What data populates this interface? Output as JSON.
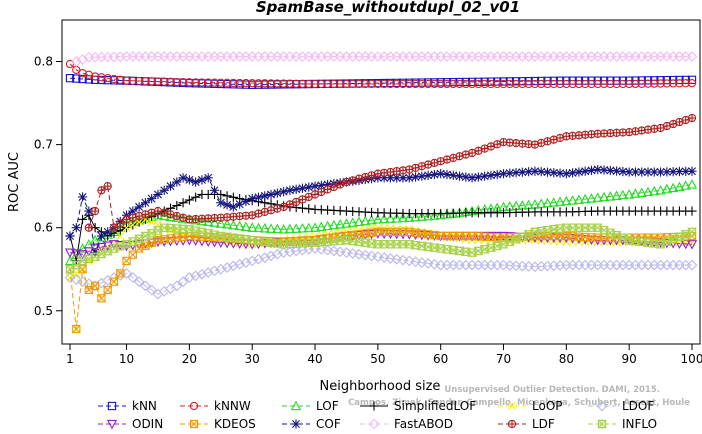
{
  "chart_data": {
    "type": "line",
    "title": "SpamBase_withoutdupl_02_v01",
    "xlabel": "Neighborhood size",
    "ylabel": "ROC AUC",
    "xlim": [
      1,
      100
    ],
    "ylim": [
      0.46,
      0.85
    ],
    "xticks": [
      1,
      10,
      20,
      30,
      40,
      50,
      60,
      70,
      80,
      90,
      100
    ],
    "yticks": [
      0.5,
      0.6,
      0.7,
      0.8
    ],
    "legend_position": "bottom",
    "watermark": [
      "Unsupervised Outlier Detection. DAMI, 2015.",
      "Campos, Zimek, Sander, Campello, Micenkova, Schubert, Assent, Houle"
    ],
    "series": [
      {
        "name": "kNN",
        "color": "#1515d0",
        "marker": "square",
        "dash": "5,3",
        "points": [
          [
            1,
            0.78
          ],
          [
            5,
            0.778
          ],
          [
            10,
            0.777
          ],
          [
            20,
            0.774
          ],
          [
            30,
            0.772
          ],
          [
            40,
            0.773
          ],
          [
            50,
            0.774
          ],
          [
            60,
            0.775
          ],
          [
            70,
            0.776
          ],
          [
            80,
            0.777
          ],
          [
            90,
            0.777
          ],
          [
            100,
            0.778
          ]
        ]
      },
      {
        "name": "kNNW",
        "color": "#d82020",
        "marker": "circle",
        "dash": "5,3",
        "points": [
          [
            1,
            0.797
          ],
          [
            2,
            0.79
          ],
          [
            3,
            0.786
          ],
          [
            5,
            0.782
          ],
          [
            10,
            0.777
          ],
          [
            20,
            0.775
          ],
          [
            30,
            0.774
          ],
          [
            40,
            0.773
          ],
          [
            50,
            0.773
          ],
          [
            60,
            0.773
          ],
          [
            70,
            0.773
          ],
          [
            80,
            0.773
          ],
          [
            90,
            0.773
          ],
          [
            100,
            0.774
          ]
        ]
      },
      {
        "name": "LOF",
        "color": "#22dd22",
        "marker": "triangle",
        "dash": "5,3",
        "points": [
          [
            1,
            0.56
          ],
          [
            3,
            0.575
          ],
          [
            5,
            0.585
          ],
          [
            8,
            0.595
          ],
          [
            10,
            0.605
          ],
          [
            15,
            0.615
          ],
          [
            20,
            0.61
          ],
          [
            25,
            0.605
          ],
          [
            30,
            0.6
          ],
          [
            35,
            0.598
          ],
          [
            40,
            0.6
          ],
          [
            45,
            0.605
          ],
          [
            50,
            0.61
          ],
          [
            55,
            0.612
          ],
          [
            60,
            0.615
          ],
          [
            65,
            0.62
          ],
          [
            70,
            0.625
          ],
          [
            75,
            0.628
          ],
          [
            80,
            0.632
          ],
          [
            85,
            0.636
          ],
          [
            90,
            0.64
          ],
          [
            95,
            0.645
          ],
          [
            100,
            0.652
          ]
        ]
      },
      {
        "name": "SimplifiedLOF",
        "color": "#000000",
        "marker": "plus",
        "dash": "",
        "points": [
          [
            1,
            0.59
          ],
          [
            2,
            0.56
          ],
          [
            3,
            0.61
          ],
          [
            4,
            0.615
          ],
          [
            5,
            0.6
          ],
          [
            7,
            0.59
          ],
          [
            10,
            0.6
          ],
          [
            13,
            0.61
          ],
          [
            16,
            0.62
          ],
          [
            19,
            0.63
          ],
          [
            22,
            0.64
          ],
          [
            25,
            0.64
          ],
          [
            28,
            0.635
          ],
          [
            32,
            0.63
          ],
          [
            36,
            0.625
          ],
          [
            40,
            0.622
          ],
          [
            45,
            0.62
          ],
          [
            50,
            0.618
          ],
          [
            55,
            0.617
          ],
          [
            60,
            0.617
          ],
          [
            65,
            0.618
          ],
          [
            70,
            0.618
          ],
          [
            75,
            0.619
          ],
          [
            80,
            0.619
          ],
          [
            85,
            0.62
          ],
          [
            90,
            0.62
          ],
          [
            95,
            0.62
          ],
          [
            100,
            0.62
          ]
        ]
      },
      {
        "name": "LoOP",
        "color": "#f2f200",
        "marker": "cross",
        "dash": "5,3",
        "points": [
          [
            1,
            0.54
          ],
          [
            3,
            0.55
          ],
          [
            5,
            0.57
          ],
          [
            8,
            0.58
          ],
          [
            10,
            0.6
          ],
          [
            13,
            0.61
          ],
          [
            16,
            0.6
          ],
          [
            20,
            0.59
          ],
          [
            25,
            0.585
          ],
          [
            30,
            0.58
          ],
          [
            35,
            0.585
          ],
          [
            40,
            0.59
          ],
          [
            45,
            0.595
          ],
          [
            50,
            0.6
          ],
          [
            55,
            0.598
          ],
          [
            60,
            0.59
          ],
          [
            65,
            0.585
          ],
          [
            70,
            0.585
          ],
          [
            75,
            0.585
          ],
          [
            80,
            0.583
          ],
          [
            85,
            0.583
          ],
          [
            90,
            0.582
          ],
          [
            95,
            0.582
          ],
          [
            100,
            0.582
          ]
        ]
      },
      {
        "name": "LDOF",
        "color": "#b8b8ee",
        "marker": "diamond",
        "dash": "5,3",
        "points": [
          [
            1,
            0.54
          ],
          [
            3,
            0.535
          ],
          [
            5,
            0.53
          ],
          [
            8,
            0.54
          ],
          [
            10,
            0.545
          ],
          [
            12,
            0.535
          ],
          [
            15,
            0.52
          ],
          [
            18,
            0.53
          ],
          [
            20,
            0.54
          ],
          [
            25,
            0.55
          ],
          [
            30,
            0.56
          ],
          [
            35,
            0.57
          ],
          [
            40,
            0.575
          ],
          [
            45,
            0.57
          ],
          [
            50,
            0.565
          ],
          [
            55,
            0.56
          ],
          [
            60,
            0.555
          ],
          [
            65,
            0.555
          ],
          [
            70,
            0.555
          ],
          [
            75,
            0.553
          ],
          [
            80,
            0.555
          ],
          [
            85,
            0.555
          ],
          [
            90,
            0.555
          ],
          [
            95,
            0.555
          ],
          [
            100,
            0.555
          ]
        ]
      },
      {
        "name": "ODIN",
        "color": "#9b1bd0",
        "marker": "triangle-down",
        "dash": "5,3",
        "points": [
          [
            1,
            0.57
          ],
          [
            3,
            0.568
          ],
          [
            5,
            0.575
          ],
          [
            8,
            0.58
          ],
          [
            10,
            0.578
          ],
          [
            15,
            0.583
          ],
          [
            20,
            0.585
          ],
          [
            25,
            0.582
          ],
          [
            30,
            0.58
          ],
          [
            35,
            0.583
          ],
          [
            40,
            0.585
          ],
          [
            45,
            0.59
          ],
          [
            50,
            0.593
          ],
          [
            55,
            0.592
          ],
          [
            60,
            0.59
          ],
          [
            65,
            0.59
          ],
          [
            70,
            0.59
          ],
          [
            75,
            0.588
          ],
          [
            80,
            0.588
          ],
          [
            85,
            0.585
          ],
          [
            90,
            0.585
          ],
          [
            95,
            0.582
          ],
          [
            100,
            0.58
          ]
        ]
      },
      {
        "name": "KDEOS",
        "color": "#f09a00",
        "marker": "square-x",
        "dash": "5,3",
        "points": [
          [
            1,
            0.55
          ],
          [
            2,
            0.478
          ],
          [
            3,
            0.55
          ],
          [
            4,
            0.525
          ],
          [
            5,
            0.53
          ],
          [
            6,
            0.515
          ],
          [
            7,
            0.525
          ],
          [
            8,
            0.535
          ],
          [
            9,
            0.545
          ],
          [
            10,
            0.56
          ],
          [
            12,
            0.575
          ],
          [
            15,
            0.585
          ],
          [
            20,
            0.59
          ],
          [
            25,
            0.588
          ],
          [
            30,
            0.585
          ],
          [
            35,
            0.583
          ],
          [
            40,
            0.585
          ],
          [
            45,
            0.59
          ],
          [
            50,
            0.595
          ],
          [
            55,
            0.595
          ],
          [
            60,
            0.59
          ],
          [
            65,
            0.59
          ],
          [
            70,
            0.588
          ],
          [
            75,
            0.59
          ],
          [
            80,
            0.59
          ],
          [
            85,
            0.588
          ],
          [
            90,
            0.588
          ],
          [
            95,
            0.588
          ],
          [
            100,
            0.59
          ]
        ]
      },
      {
        "name": "COF",
        "color": "#15157f",
        "marker": "asterisk",
        "dash": "5,3",
        "points": [
          [
            1,
            0.59
          ],
          [
            2,
            0.6
          ],
          [
            3,
            0.637
          ],
          [
            4,
            0.62
          ],
          [
            5,
            0.57
          ],
          [
            6,
            0.59
          ],
          [
            8,
            0.6
          ],
          [
            10,
            0.615
          ],
          [
            13,
            0.63
          ],
          [
            16,
            0.645
          ],
          [
            19,
            0.66
          ],
          [
            21,
            0.655
          ],
          [
            23,
            0.66
          ],
          [
            25,
            0.63
          ],
          [
            27,
            0.625
          ],
          [
            30,
            0.635
          ],
          [
            33,
            0.64
          ],
          [
            36,
            0.645
          ],
          [
            40,
            0.65
          ],
          [
            45,
            0.655
          ],
          [
            50,
            0.66
          ],
          [
            55,
            0.66
          ],
          [
            60,
            0.665
          ],
          [
            65,
            0.66
          ],
          [
            70,
            0.665
          ],
          [
            75,
            0.668
          ],
          [
            80,
            0.665
          ],
          [
            85,
            0.67
          ],
          [
            90,
            0.667
          ],
          [
            95,
            0.667
          ],
          [
            100,
            0.668
          ]
        ]
      },
      {
        "name": "FastABOD",
        "color": "#f5b8f5",
        "marker": "diamond",
        "dash": "5,3",
        "points": [
          [
            2,
            0.8
          ],
          [
            4,
            0.805
          ],
          [
            10,
            0.806
          ],
          [
            20,
            0.806
          ],
          [
            30,
            0.806
          ],
          [
            40,
            0.806
          ],
          [
            50,
            0.806
          ],
          [
            60,
            0.806
          ],
          [
            70,
            0.806
          ],
          [
            80,
            0.806
          ],
          [
            90,
            0.806
          ],
          [
            100,
            0.806
          ]
        ]
      },
      {
        "name": "LDF",
        "color": "#b02020",
        "marker": "circle-plus",
        "dash": "5,3",
        "points": [
          [
            4,
            0.6
          ],
          [
            5,
            0.62
          ],
          [
            6,
            0.645
          ],
          [
            7,
            0.65
          ],
          [
            8,
            0.6
          ],
          [
            10,
            0.61
          ],
          [
            15,
            0.62
          ],
          [
            20,
            0.61
          ],
          [
            25,
            0.612
          ],
          [
            30,
            0.615
          ],
          [
            35,
            0.625
          ],
          [
            40,
            0.64
          ],
          [
            45,
            0.655
          ],
          [
            50,
            0.665
          ],
          [
            55,
            0.67
          ],
          [
            60,
            0.68
          ],
          [
            65,
            0.69
          ],
          [
            70,
            0.703
          ],
          [
            75,
            0.7
          ],
          [
            80,
            0.71
          ],
          [
            85,
            0.713
          ],
          [
            90,
            0.715
          ],
          [
            95,
            0.72
          ],
          [
            100,
            0.732
          ]
        ]
      },
      {
        "name": "INFLO",
        "color": "#a8d24a",
        "marker": "hourglass",
        "dash": "5,3",
        "points": [
          [
            1,
            0.55
          ],
          [
            3,
            0.56
          ],
          [
            5,
            0.565
          ],
          [
            8,
            0.575
          ],
          [
            10,
            0.58
          ],
          [
            13,
            0.59
          ],
          [
            16,
            0.6
          ],
          [
            20,
            0.598
          ],
          [
            25,
            0.59
          ],
          [
            30,
            0.585
          ],
          [
            35,
            0.58
          ],
          [
            40,
            0.582
          ],
          [
            45,
            0.585
          ],
          [
            50,
            0.58
          ],
          [
            55,
            0.58
          ],
          [
            60,
            0.575
          ],
          [
            65,
            0.57
          ],
          [
            70,
            0.58
          ],
          [
            75,
            0.595
          ],
          [
            80,
            0.6
          ],
          [
            85,
            0.6
          ],
          [
            90,
            0.585
          ],
          [
            95,
            0.58
          ],
          [
            100,
            0.595
          ]
        ]
      }
    ]
  }
}
